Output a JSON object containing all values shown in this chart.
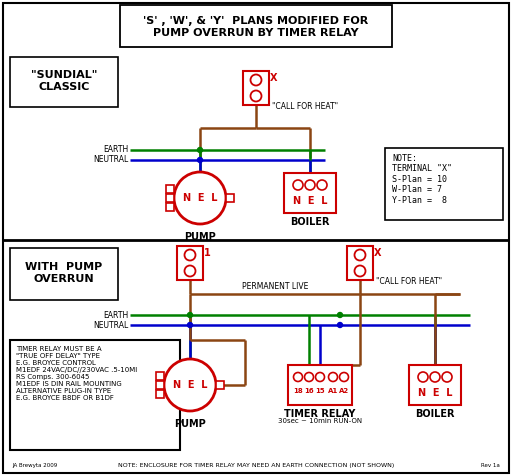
{
  "bg_color": "#ffffff",
  "red": "#cc0000",
  "green": "#008000",
  "blue": "#0000cc",
  "brown": "#8B4513",
  "black": "#000000",
  "note_text": "NOTE:\nTERMINAL \"X\"\nS-Plan = 10\nW-Plan = 7\nY-Plan =  8",
  "timer_note": "NOTE: ENCLOSURE FOR TIMER RELAY MAY NEED AN EARTH CONNECTION (NOT SHOWN)",
  "relay_text": "TIMER RELAY MUST BE A\n\"TRUE OFF DELAY\" TYPE\nE.G. BROYCE CONTROL\nM1EDF 24VAC/DC//230VAC .5-10MI\nRS Comps. 300-6045\nM1EDF IS DIN RAIL MOUNTING\nALTERNATIVE PLUG-IN TYPE\nE.G. BROYCE B8DF OR B1DF"
}
